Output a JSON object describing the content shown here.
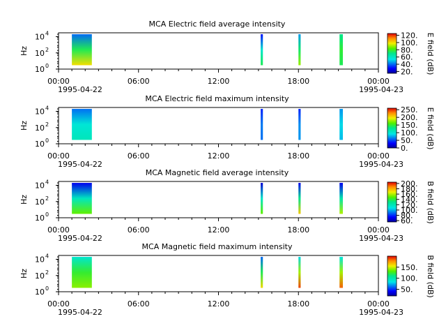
{
  "chart_data": [
    {
      "type": "heatmap",
      "title": "MCA  Electric field average intensity",
      "ylabel": "Hz",
      "yscale": "log",
      "ylim": [
        1,
        30000
      ],
      "yticks": [
        "10",
        "10",
        "10"
      ],
      "yexp": [
        "0",
        "2",
        "4"
      ],
      "xticks": [
        "00:00",
        "06:00",
        "12:00",
        "18:00",
        "00:00"
      ],
      "xdates": [
        "1995-04-22",
        "1995-04-23"
      ],
      "colorbar_label": "E field (dB)",
      "colorbar_ticks": [
        "20.",
        "40.",
        "60.",
        "80.",
        "100.",
        "120."
      ],
      "colorbar_range": [
        15,
        125
      ],
      "bursts": [
        {
          "start": "01:00",
          "end": "02:30",
          "low_db": 100,
          "high_db": 40
        },
        {
          "start": "15:10",
          "end": "15:20",
          "low_db": 75,
          "high_db": 30
        },
        {
          "start": "18:00",
          "end": "18:10",
          "low_db": 90,
          "high_db": 45
        },
        {
          "start": "21:05",
          "end": "21:20",
          "low_db": 75,
          "high_db": 70
        }
      ]
    },
    {
      "type": "heatmap",
      "title": "MCA  Electric field maximum intensity",
      "ylabel": "Hz",
      "yscale": "log",
      "ylim": [
        1,
        30000
      ],
      "yticks": [
        "10",
        "10",
        "10"
      ],
      "yexp": [
        "0",
        "2",
        "4"
      ],
      "xticks": [
        "00:00",
        "06:00",
        "12:00",
        "18:00",
        "00:00"
      ],
      "xdates": [
        "1995-04-22",
        "1995-04-23"
      ],
      "colorbar_label": "E field (dB)",
      "colorbar_ticks": [
        "0.",
        "50.",
        "100.",
        "150.",
        "200.",
        "250."
      ],
      "colorbar_range": [
        0,
        260
      ],
      "bursts": [
        {
          "start": "01:00",
          "end": "02:30",
          "low_db": 110,
          "high_db": 60
        },
        {
          "start": "15:10",
          "end": "15:20",
          "low_db": 60,
          "high_db": 40
        },
        {
          "start": "18:00",
          "end": "18:10",
          "low_db": 70,
          "high_db": 40
        },
        {
          "start": "21:05",
          "end": "21:20",
          "low_db": 80,
          "high_db": 70
        }
      ]
    },
    {
      "type": "heatmap",
      "title": "MCA  Magnetic field average intensity",
      "ylabel": "Hz",
      "yscale": "log",
      "ylim": [
        1,
        30000
      ],
      "yticks": [
        "10",
        "10",
        "10"
      ],
      "yexp": [
        "0",
        "2",
        "4"
      ],
      "xticks": [
        "00:00",
        "06:00",
        "12:00",
        "18:00",
        "00:00"
      ],
      "xdates": [
        "1995-04-22",
        "1995-04-23"
      ],
      "colorbar_label": "B field (dB)",
      "colorbar_ticks": [
        "60.",
        "80.",
        "100.",
        "120.",
        "140.",
        "160.",
        "180.",
        "200."
      ],
      "colorbar_range": [
        55,
        205
      ],
      "bursts": [
        {
          "start": "01:00",
          "end": "02:30",
          "low_db": 150,
          "high_db": 70
        },
        {
          "start": "15:10",
          "end": "15:20",
          "low_db": 150,
          "high_db": 65
        },
        {
          "start": "18:00",
          "end": "18:10",
          "low_db": 175,
          "high_db": 70
        },
        {
          "start": "21:05",
          "end": "21:20",
          "low_db": 160,
          "high_db": 70
        }
      ]
    },
    {
      "type": "heatmap",
      "title": "MCA  Magnetic field maximum intensity",
      "ylabel": "Hz",
      "yscale": "log",
      "ylim": [
        1,
        30000
      ],
      "yticks": [
        "10",
        "10",
        "10"
      ],
      "yexp": [
        "0",
        "2",
        "4"
      ],
      "xticks": [
        "00:00",
        "06:00",
        "12:00",
        "18:00",
        "00:00"
      ],
      "xdates": [
        "1995-04-22",
        "1995-04-23"
      ],
      "colorbar_label": "B field (dB)",
      "colorbar_ticks": [
        "50.",
        "100.",
        "150."
      ],
      "colorbar_range": [
        20,
        200
      ],
      "bursts": [
        {
          "start": "01:00",
          "end": "02:30",
          "low_db": 140,
          "high_db": 90
        },
        {
          "start": "15:10",
          "end": "15:20",
          "low_db": 160,
          "high_db": 60
        },
        {
          "start": "18:00",
          "end": "18:10",
          "low_db": 190,
          "high_db": 80
        },
        {
          "start": "21:05",
          "end": "21:20",
          "low_db": 185,
          "high_db": 85
        }
      ]
    }
  ]
}
